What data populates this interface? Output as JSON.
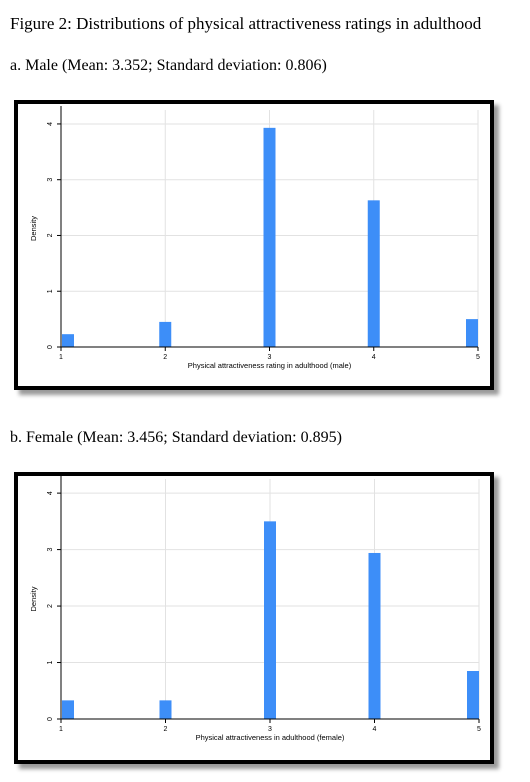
{
  "figure_title": "Figure 2: Distributions of physical attractiveness ratings in adulthood",
  "panels": [
    {
      "title": "a. Male (Mean: 3.352; Standard deviation: 0.806)"
    },
    {
      "title": "b. Female (Mean: 3.456; Standard deviation: 0.895)"
    }
  ],
  "colors": {
    "bar": "#3d8ef8",
    "grid": "#e2e2e2",
    "frame": "#000000"
  },
  "chart_data": [
    {
      "type": "bar",
      "categories": [
        "1",
        "2",
        "3",
        "4",
        "5"
      ],
      "x": [
        1,
        2,
        3,
        4,
        5
      ],
      "values": [
        0.23,
        0.45,
        3.93,
        2.63,
        0.5
      ],
      "xlabel": "Physical attractiveness rating in adulthood (male)",
      "ylabel": "Density",
      "xticks": [
        "1",
        "2",
        "3",
        "4",
        "5"
      ],
      "yticks": [
        "0",
        "1",
        "2",
        "3",
        "4"
      ],
      "xlim": [
        1,
        5
      ],
      "ylim": [
        0,
        4.25
      ],
      "grid": true
    },
    {
      "type": "bar",
      "categories": [
        "1",
        "2",
        "3",
        "4",
        "5"
      ],
      "x": [
        1,
        2,
        3,
        4,
        5
      ],
      "values": [
        0.33,
        0.33,
        3.5,
        2.94,
        0.85
      ],
      "xlabel": "Physical attractiveness in adulthood (female)",
      "ylabel": "Density",
      "xticks": [
        "1",
        "2",
        "3",
        "4",
        "5"
      ],
      "yticks": [
        "0",
        "1",
        "2",
        "3",
        "4"
      ],
      "xlim": [
        1,
        5
      ],
      "ylim": [
        0,
        4.25
      ],
      "grid": true
    }
  ]
}
